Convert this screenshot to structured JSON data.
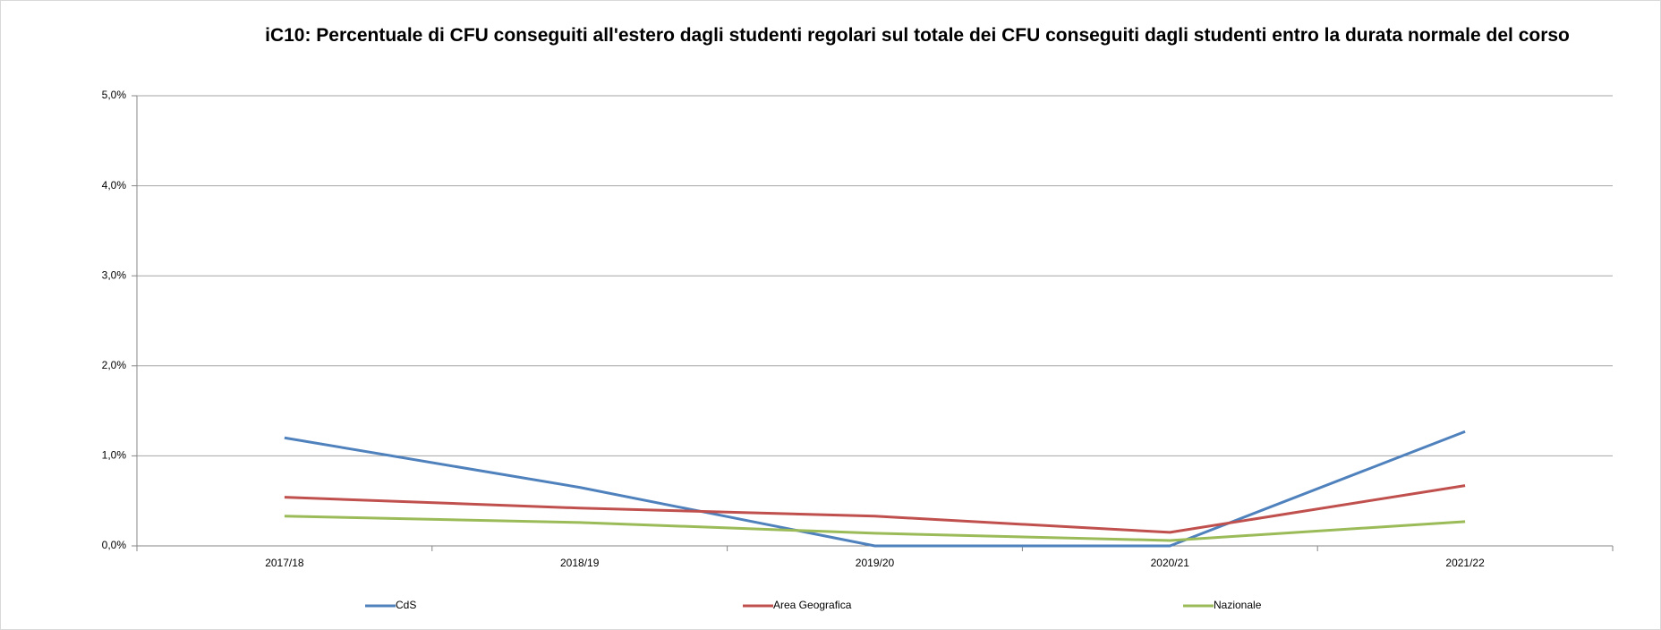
{
  "chart_data": {
    "type": "line",
    "title": "iC10: Percentuale di CFU conseguiti all'estero dagli studenti regolari sul totale dei CFU conseguiti dagli studenti entro la durata normale del corso",
    "categories": [
      "2017/18",
      "2018/19",
      "2019/20",
      "2020/21",
      "2021/22"
    ],
    "series": [
      {
        "name": "CdS",
        "color": "#4f81bd",
        "values": [
          1.2,
          0.65,
          0.0,
          0.0,
          1.27
        ]
      },
      {
        "name": "Area Geografica",
        "color": "#c0504d",
        "values": [
          0.54,
          0.42,
          0.33,
          0.15,
          0.67
        ]
      },
      {
        "name": "Nazionale",
        "color": "#9bbb59",
        "values": [
          0.33,
          0.26,
          0.14,
          0.06,
          0.27
        ]
      }
    ],
    "ylim": [
      0,
      5
    ],
    "yticks": [
      {
        "value": 0,
        "label": "0,0%"
      },
      {
        "value": 1,
        "label": "1,0%"
      },
      {
        "value": 2,
        "label": "2,0%"
      },
      {
        "value": 3,
        "label": "3,0%"
      },
      {
        "value": 4,
        "label": "4,0%"
      },
      {
        "value": 5,
        "label": "5,0%"
      }
    ],
    "grid": true,
    "legend": "bottom"
  }
}
